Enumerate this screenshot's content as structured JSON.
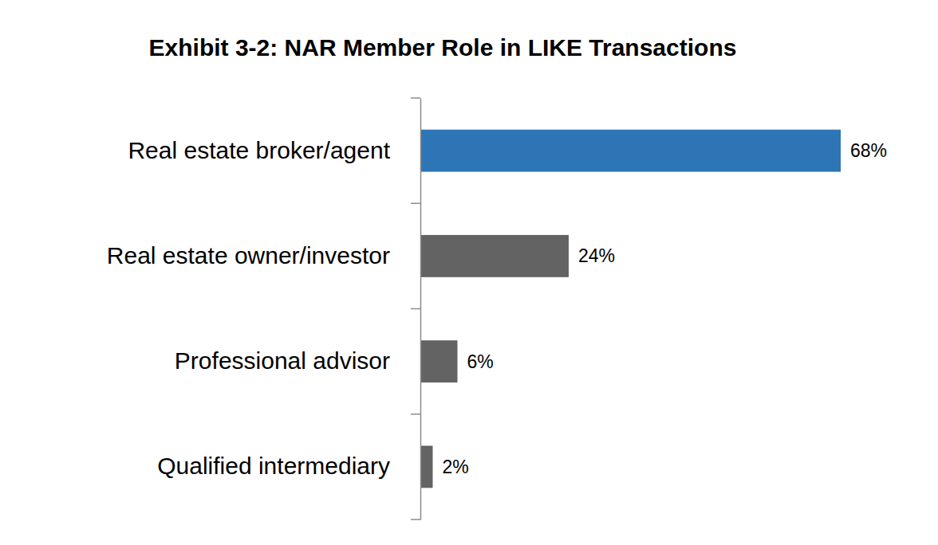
{
  "chart_data": {
    "type": "bar",
    "orientation": "horizontal",
    "title": "Exhibit 3-2: NAR Member Role in LIKE Transactions",
    "categories": [
      "Real estate broker/agent",
      "Real estate owner/investor",
      "Professional advisor",
      "Qualified intermediary"
    ],
    "values": [
      68,
      24,
      6,
      2
    ],
    "value_labels": [
      "68%",
      "24%",
      "6%",
      "2%"
    ],
    "colors": [
      "#2e75b6",
      "#636363",
      "#636363",
      "#636363"
    ],
    "data_labels": true,
    "tick_labels": "y"
  }
}
